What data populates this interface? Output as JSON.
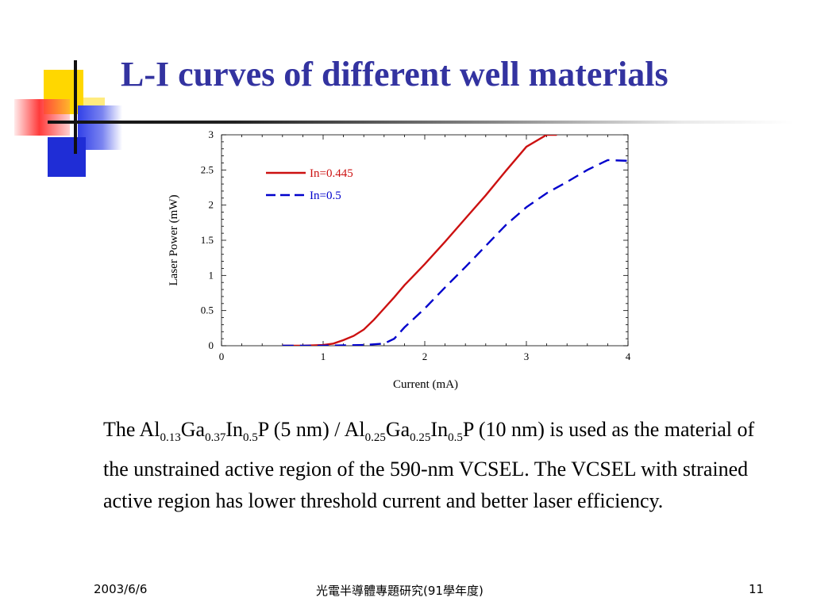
{
  "slide": {
    "title": "L-I curves of different well materials"
  },
  "body": {
    "p1": "The Al",
    "s1": "0.13",
    "p2": "Ga",
    "s2": "0.37",
    "p3": "In",
    "s3": "0.5",
    "p4": "P (5 nm) / Al",
    "s4": "0.25",
    "p5": "Ga",
    "s5": "0.25",
    "p6": "In",
    "s6": "0.5",
    "p7": "P (10 nm) is used as the material of the unstrained active region of the 590-nm VCSEL. The VCSEL with strained active region has lower threshold current and better laser efficiency."
  },
  "footer": {
    "date": "2003/6/6",
    "center": "光電半導體專題研究(91學年度)",
    "page": "11"
  },
  "colors": {
    "title": "#3333a0",
    "series_red": "#cc1111",
    "series_blue": "#0000cc"
  },
  "chart_data": {
    "type": "line",
    "title": "",
    "xlabel": "Current (mA)",
    "ylabel": "Laser Power (mW)",
    "xlim": [
      0,
      4
    ],
    "ylim": [
      0,
      3
    ],
    "xticks": [
      "0",
      "1",
      "2",
      "3",
      "4"
    ],
    "yticks": [
      "0",
      "0.5",
      "1",
      "1.5",
      "2",
      "2.5",
      "3"
    ],
    "grid": false,
    "legend": "top-left",
    "series": [
      {
        "name": "In=0.445",
        "color": "#cc1111",
        "dash": "solid",
        "x": [
          0.6,
          0.8,
          1.0,
          1.1,
          1.2,
          1.3,
          1.4,
          1.5,
          1.6,
          1.7,
          1.8,
          1.9,
          2.0,
          2.2,
          2.4,
          2.6,
          2.8,
          3.0,
          3.2,
          3.3
        ],
        "y": [
          0.0,
          0.0,
          0.01,
          0.03,
          0.08,
          0.14,
          0.23,
          0.37,
          0.53,
          0.69,
          0.86,
          1.01,
          1.16,
          1.48,
          1.81,
          2.14,
          2.49,
          2.83,
          3.0,
          3.0
        ]
      },
      {
        "name": "In=0.5",
        "color": "#0000cc",
        "dash": "dashed",
        "x": [
          0.6,
          1.0,
          1.4,
          1.6,
          1.7,
          1.8,
          2.0,
          2.2,
          2.4,
          2.6,
          2.8,
          3.0,
          3.2,
          3.4,
          3.6,
          3.8,
          4.0
        ],
        "y": [
          0.0,
          0.0,
          0.01,
          0.03,
          0.1,
          0.26,
          0.53,
          0.83,
          1.12,
          1.42,
          1.72,
          1.97,
          2.17,
          2.33,
          2.5,
          2.64,
          2.63
        ]
      }
    ]
  }
}
